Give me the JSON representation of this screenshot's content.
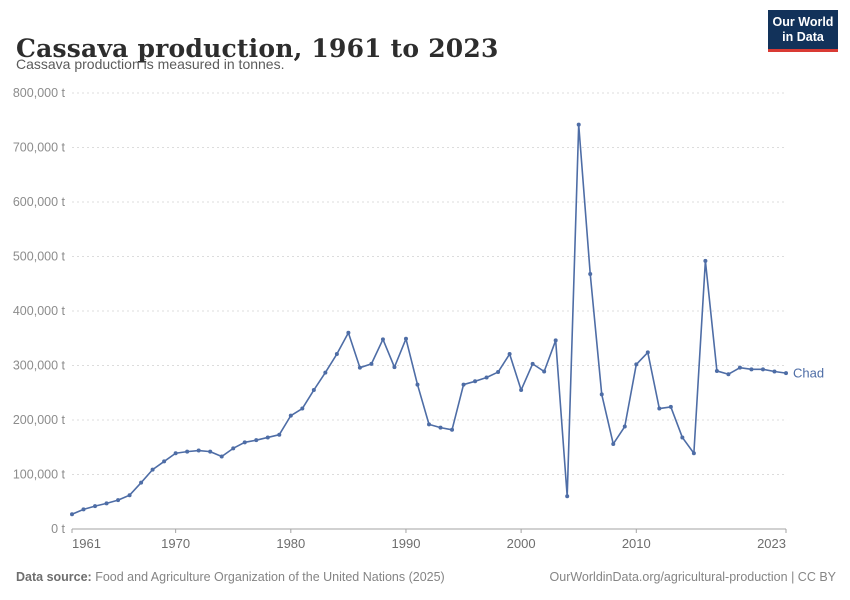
{
  "header": {
    "title": "Cassava production, 1961 to 2023",
    "subtitle": "Cassava production is measured in tonnes."
  },
  "logo": {
    "line1": "Our World",
    "line2": "in Data",
    "bg_color": "#12325a",
    "accent_color": "#d93a34"
  },
  "chart_data": {
    "type": "line",
    "title": "Cassava production, 1961 to 2023",
    "ylabel": "",
    "xlabel": "",
    "unit": "t",
    "grid": "horizontal-dashed",
    "legend_position": "end-of-line-label",
    "xlim": [
      1961,
      2023
    ],
    "ylim": [
      0,
      800000
    ],
    "xticks": {
      "values": [
        1961,
        1970,
        1980,
        1990,
        2000,
        2010,
        2023
      ],
      "labels": [
        "1961",
        "1970",
        "1980",
        "1990",
        "2000",
        "2010",
        "2023"
      ]
    },
    "yticks": {
      "values": [
        0,
        100000,
        200000,
        300000,
        400000,
        500000,
        600000,
        700000,
        800000
      ],
      "labels": [
        "0 t",
        "100,000 t",
        "200,000 t",
        "300,000 t",
        "400,000 t",
        "500,000 t",
        "600,000 t",
        "700,000 t",
        "800,000 t"
      ]
    },
    "x": [
      1961,
      1962,
      1963,
      1964,
      1965,
      1966,
      1967,
      1968,
      1969,
      1970,
      1971,
      1972,
      1973,
      1974,
      1975,
      1976,
      1977,
      1978,
      1979,
      1980,
      1981,
      1982,
      1983,
      1984,
      1985,
      1986,
      1987,
      1988,
      1989,
      1990,
      1991,
      1992,
      1993,
      1994,
      1995,
      1996,
      1997,
      1998,
      1999,
      2000,
      2001,
      2002,
      2003,
      2004,
      2005,
      2006,
      2007,
      2008,
      2009,
      2010,
      2011,
      2012,
      2013,
      2014,
      2015,
      2016,
      2017,
      2018,
      2019,
      2020,
      2021,
      2022,
      2023
    ],
    "series": [
      {
        "name": "Chad",
        "color": "#4e6da6",
        "values": [
          27000,
          36000,
          42000,
          47000,
          53000,
          62000,
          85000,
          109000,
          124000,
          139000,
          142000,
          144000,
          142000,
          133000,
          148000,
          159000,
          163000,
          168000,
          173000,
          208000,
          221000,
          255000,
          287000,
          321000,
          360000,
          296000,
          303000,
          348000,
          297000,
          349000,
          265000,
          192000,
          186000,
          182000,
          265000,
          271000,
          278000,
          288000,
          321000,
          255000,
          303000,
          289000,
          346000,
          60000,
          742000,
          468000,
          247000,
          156000,
          188000,
          302000,
          324000,
          221000,
          224000,
          168000,
          139000,
          492000,
          290000,
          284000,
          296000,
          293000,
          293000,
          289000,
          286000
        ]
      }
    ]
  },
  "footer": {
    "datasource_label": "Data source:",
    "datasource_text": " Food and Agriculture Organization of the United Nations (2025)",
    "link_text": "OurWorldinData.org/agricultural-production",
    "separator": " | ",
    "license_text": "CC BY"
  }
}
